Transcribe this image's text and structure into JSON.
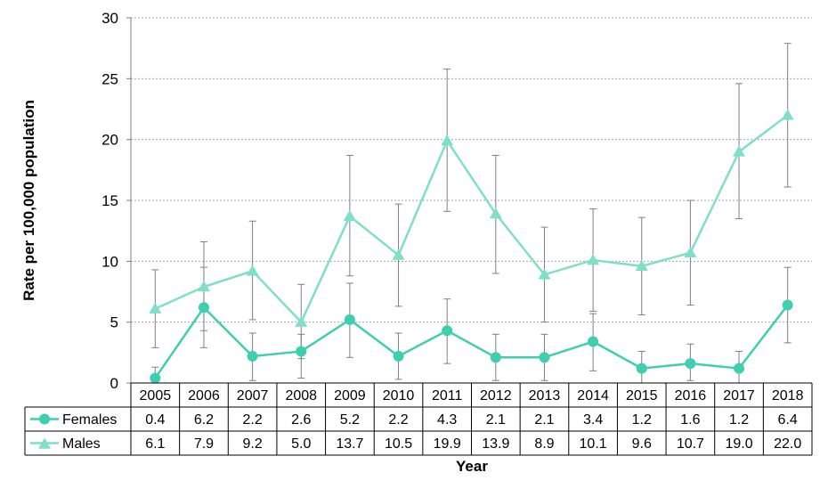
{
  "chart_data": {
    "type": "line",
    "xlabel": "Year",
    "ylabel": "Rate per 100,000 population",
    "ylim": [
      0,
      30
    ],
    "yticks": [
      "0",
      "5",
      "10",
      "15",
      "20",
      "25",
      "30"
    ],
    "grid": "horizontal dotted",
    "legend": "data table below chart",
    "categories": [
      "2005",
      "2006",
      "2007",
      "2008",
      "2009",
      "2010",
      "2011",
      "2012",
      "2013",
      "2014",
      "2015",
      "2016",
      "2017",
      "2018"
    ],
    "series": [
      {
        "name": "Females",
        "marker": "circle",
        "color": "#3fcfb0",
        "values": [
          0.4,
          6.2,
          2.2,
          2.6,
          5.2,
          2.2,
          4.3,
          2.1,
          2.1,
          3.4,
          1.2,
          1.6,
          1.2,
          6.4
        ],
        "labels": [
          "0.4",
          "6.2",
          "2.2",
          "2.6",
          "5.2",
          "2.2",
          "4.3",
          "2.1",
          "2.1",
          "3.4",
          "1.2",
          "1.6",
          "1.2",
          "6.4"
        ],
        "lower": [
          0.0,
          2.9,
          0.2,
          0.4,
          2.1,
          0.3,
          1.6,
          0.2,
          0.2,
          1.0,
          0.0,
          0.2,
          0.0,
          3.3
        ],
        "upper": [
          1.3,
          9.5,
          4.1,
          4.0,
          8.2,
          4.1,
          6.9,
          4.0,
          4.0,
          5.7,
          2.6,
          3.2,
          2.6,
          9.5
        ]
      },
      {
        "name": "Males",
        "marker": "triangle",
        "color": "#7fdfca",
        "values": [
          6.1,
          7.9,
          9.2,
          5.0,
          13.7,
          10.5,
          19.9,
          13.9,
          8.9,
          10.1,
          9.6,
          10.7,
          19.0,
          22.0
        ],
        "labels": [
          "6.1",
          "7.9",
          "9.2",
          "5.0",
          "13.7",
          "10.5",
          "19.9",
          "13.9",
          "8.9",
          "10.1",
          "9.6",
          "10.7",
          "19.0",
          "22.0"
        ],
        "lower": [
          2.9,
          4.3,
          5.2,
          2.0,
          8.8,
          6.3,
          14.1,
          9.0,
          5.0,
          5.9,
          5.6,
          6.4,
          13.5,
          16.1
        ],
        "upper": [
          9.3,
          11.6,
          13.3,
          8.1,
          18.7,
          14.7,
          25.8,
          18.7,
          12.8,
          14.3,
          13.6,
          15.0,
          24.6,
          27.9
        ]
      }
    ]
  }
}
